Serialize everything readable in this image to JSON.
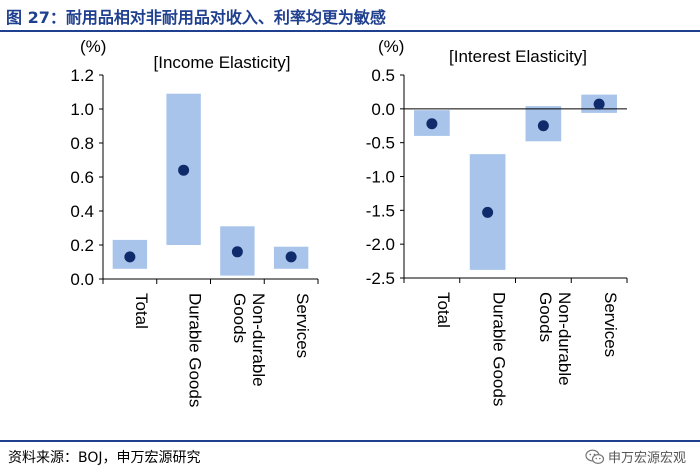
{
  "header": {
    "title": "图 27：耐用品相对非耐用品对收入、利率均更为敏感"
  },
  "footer": {
    "source": "资料来源：BOJ，申万宏源研究",
    "watermark": "申万宏源宏观"
  },
  "colors": {
    "accent": "#1f3f8f",
    "bar": "#a8c4ea",
    "dot": "#0f2b6b"
  },
  "chart_data": [
    {
      "type": "range-dot",
      "title": "[Income Elasticity]",
      "unit": "(%)",
      "categories": [
        "Total",
        "Durable Goods",
        "Non-durable Goods",
        "Services"
      ],
      "tick_labels": [
        "Total",
        "Durable Goods",
        [
          "Non-durable",
          "Goods"
        ],
        "Services"
      ],
      "y_ticks": [
        "1.2",
        "1.0",
        "0.8",
        "0.6",
        "0.4",
        "0.2",
        "0.0"
      ],
      "ylim": [
        0,
        1.2
      ],
      "low": [
        0.06,
        0.2,
        0.02,
        0.06
      ],
      "high": [
        0.23,
        1.09,
        0.31,
        0.19
      ],
      "point": [
        0.13,
        0.64,
        0.16,
        0.13
      ]
    },
    {
      "type": "range-dot",
      "title": "[Interest Elasticity]",
      "unit": "(%)",
      "categories": [
        "Total",
        "Durable Goods",
        "Non-durable Goods",
        "Services"
      ],
      "tick_labels": [
        "Total",
        "Durable Goods",
        [
          "Non-durable",
          "Goods"
        ],
        "Services"
      ],
      "y_ticks": [
        "0.5",
        "0.0",
        "-0.5",
        "-1.0",
        "-1.5",
        "-2.0",
        "-2.5"
      ],
      "ylim": [
        -2.5,
        0.5
      ],
      "low": [
        -0.4,
        -2.38,
        -0.48,
        -0.06
      ],
      "high": [
        -0.02,
        -0.67,
        0.04,
        0.21
      ],
      "point": [
        -0.22,
        -1.53,
        -0.25,
        0.07
      ]
    }
  ]
}
